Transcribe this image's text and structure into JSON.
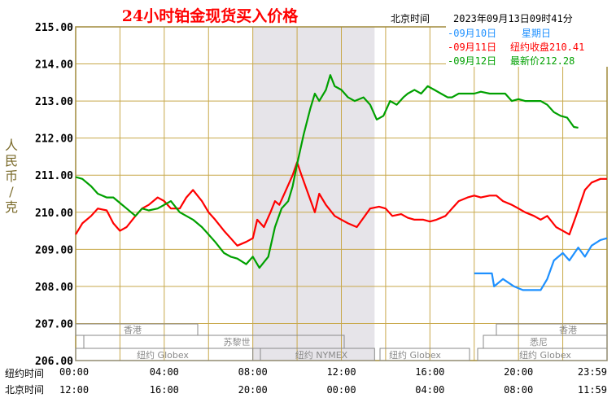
{
  "header": {
    "title": "24小时铂金现货买入价格",
    "location": "北京时间",
    "timestamp": "2023年09月13日09时41分"
  },
  "legend": [
    {
      "date": "-09月10日",
      "info": "星期日",
      "color": "#1e90ff"
    },
    {
      "date": "-09月11日",
      "info": "纽约收盘210.41",
      "color": "#ff0000"
    },
    {
      "date": "-09月12日",
      "info": "最新价212.28",
      "color": "#00a000"
    }
  ],
  "axis": {
    "ylabel": "人民币/克",
    "row1_label": "纽约时间",
    "row2_label": "北京时间",
    "ny_ticks": [
      "00:00",
      "04:00",
      "08:00",
      "12:00",
      "16:00",
      "20:00",
      "23:59"
    ],
    "bj_ticks": [
      "12:00",
      "16:00",
      "20:00",
      "00:00",
      "04:00",
      "08:00",
      "11:59"
    ]
  },
  "sessions": {
    "hongkong": "香港",
    "paris": "苏黎世",
    "sydney": "悉尼",
    "ny_globex": "纽约 Globex",
    "ny_nymex": "纽约 NYMEX"
  },
  "chart_data": {
    "type": "line",
    "title": "24小时铂金现货买入价格",
    "ylabel": "人民币/克",
    "xlabel": "纽约时间 / 北京时间",
    "x_unit": "hours since 00:00 New York time",
    "ylim": [
      206.0,
      215.0
    ],
    "yticks": [
      "206.00",
      "207.00",
      "208.00",
      "209.00",
      "210.00",
      "211.00",
      "212.00",
      "213.00",
      "214.00",
      "215.00"
    ],
    "grid": true,
    "legend_position": "top-right",
    "shaded_hours": [
      8.0,
      13.5
    ],
    "series": [
      {
        "name": "09月10日",
        "color": "#1e90ff",
        "points": [
          [
            18.0,
            208.35
          ],
          [
            18.8,
            208.35
          ],
          [
            18.9,
            208.0
          ],
          [
            19.3,
            208.2
          ],
          [
            19.8,
            208.0
          ],
          [
            20.2,
            207.9
          ],
          [
            21.0,
            207.9
          ],
          [
            21.3,
            208.2
          ],
          [
            21.6,
            208.7
          ],
          [
            22.0,
            208.9
          ],
          [
            22.3,
            208.7
          ],
          [
            22.7,
            209.05
          ],
          [
            23.0,
            208.8
          ],
          [
            23.3,
            209.1
          ],
          [
            23.7,
            209.25
          ],
          [
            24.0,
            209.3
          ]
        ]
      },
      {
        "name": "09月11日",
        "color": "#ff0000",
        "points": [
          [
            0.0,
            209.4
          ],
          [
            0.3,
            209.7
          ],
          [
            0.7,
            209.9
          ],
          [
            1.0,
            210.1
          ],
          [
            1.4,
            210.05
          ],
          [
            1.7,
            209.7
          ],
          [
            2.0,
            209.5
          ],
          [
            2.3,
            209.6
          ],
          [
            2.7,
            209.9
          ],
          [
            3.0,
            210.1
          ],
          [
            3.3,
            210.2
          ],
          [
            3.7,
            210.4
          ],
          [
            4.0,
            210.3
          ],
          [
            4.3,
            210.1
          ],
          [
            4.7,
            210.1
          ],
          [
            5.0,
            210.4
          ],
          [
            5.3,
            210.6
          ],
          [
            5.7,
            210.3
          ],
          [
            6.0,
            210.0
          ],
          [
            6.3,
            209.8
          ],
          [
            6.7,
            209.5
          ],
          [
            7.0,
            209.3
          ],
          [
            7.3,
            209.1
          ],
          [
            7.7,
            209.2
          ],
          [
            8.0,
            209.3
          ],
          [
            8.2,
            209.8
          ],
          [
            8.5,
            209.6
          ],
          [
            8.8,
            210.0
          ],
          [
            9.0,
            210.3
          ],
          [
            9.2,
            210.2
          ],
          [
            9.5,
            210.6
          ],
          [
            9.8,
            211.0
          ],
          [
            10.0,
            211.35
          ],
          [
            10.2,
            211.0
          ],
          [
            10.5,
            210.5
          ],
          [
            10.8,
            210.0
          ],
          [
            11.0,
            210.5
          ],
          [
            11.3,
            210.2
          ],
          [
            11.7,
            209.9
          ],
          [
            12.0,
            209.8
          ],
          [
            12.3,
            209.7
          ],
          [
            12.7,
            209.6
          ],
          [
            13.0,
            209.85
          ],
          [
            13.3,
            210.1
          ],
          [
            13.7,
            210.15
          ],
          [
            14.0,
            210.1
          ],
          [
            14.3,
            209.9
          ],
          [
            14.7,
            209.95
          ],
          [
            15.0,
            209.85
          ],
          [
            15.3,
            209.8
          ],
          [
            15.7,
            209.8
          ],
          [
            16.0,
            209.75
          ],
          [
            16.3,
            209.8
          ],
          [
            16.7,
            209.9
          ],
          [
            17.0,
            210.1
          ],
          [
            17.3,
            210.3
          ],
          [
            17.7,
            210.4
          ],
          [
            18.0,
            210.45
          ],
          [
            18.3,
            210.4
          ],
          [
            18.7,
            210.45
          ],
          [
            19.0,
            210.45
          ],
          [
            19.3,
            210.3
          ],
          [
            19.7,
            210.2
          ],
          [
            20.0,
            210.1
          ],
          [
            20.3,
            210.0
          ],
          [
            20.7,
            209.9
          ],
          [
            21.0,
            209.8
          ],
          [
            21.3,
            209.9
          ],
          [
            21.7,
            209.6
          ],
          [
            22.0,
            209.5
          ],
          [
            22.3,
            209.4
          ],
          [
            22.6,
            209.9
          ],
          [
            23.0,
            210.6
          ],
          [
            23.3,
            210.8
          ],
          [
            23.7,
            210.9
          ],
          [
            24.0,
            210.9
          ]
        ]
      },
      {
        "name": "09月12日",
        "color": "#00a000",
        "points": [
          [
            0.0,
            210.95
          ],
          [
            0.3,
            210.9
          ],
          [
            0.7,
            210.7
          ],
          [
            1.0,
            210.5
          ],
          [
            1.4,
            210.4
          ],
          [
            1.7,
            210.4
          ],
          [
            2.0,
            210.25
          ],
          [
            2.3,
            210.1
          ],
          [
            2.7,
            209.9
          ],
          [
            3.0,
            210.1
          ],
          [
            3.3,
            210.05
          ],
          [
            3.7,
            210.1
          ],
          [
            4.0,
            210.2
          ],
          [
            4.3,
            210.3
          ],
          [
            4.7,
            210.0
          ],
          [
            5.0,
            209.9
          ],
          [
            5.3,
            209.8
          ],
          [
            5.7,
            209.6
          ],
          [
            6.0,
            209.4
          ],
          [
            6.3,
            209.2
          ],
          [
            6.7,
            208.9
          ],
          [
            7.0,
            208.8
          ],
          [
            7.3,
            208.75
          ],
          [
            7.7,
            208.6
          ],
          [
            8.0,
            208.8
          ],
          [
            8.3,
            208.5
          ],
          [
            8.7,
            208.8
          ],
          [
            9.0,
            209.6
          ],
          [
            9.3,
            210.1
          ],
          [
            9.6,
            210.3
          ],
          [
            9.8,
            210.7
          ],
          [
            10.0,
            211.3
          ],
          [
            10.3,
            212.1
          ],
          [
            10.6,
            212.8
          ],
          [
            10.8,
            213.2
          ],
          [
            11.0,
            213.0
          ],
          [
            11.3,
            213.3
          ],
          [
            11.5,
            213.7
          ],
          [
            11.7,
            213.4
          ],
          [
            12.0,
            213.3
          ],
          [
            12.3,
            213.1
          ],
          [
            12.6,
            213.0
          ],
          [
            13.0,
            213.1
          ],
          [
            13.3,
            212.9
          ],
          [
            13.6,
            212.5
          ],
          [
            13.9,
            212.6
          ],
          [
            14.2,
            213.0
          ],
          [
            14.5,
            212.9
          ],
          [
            14.8,
            213.1
          ],
          [
            15.0,
            213.2
          ],
          [
            15.3,
            213.3
          ],
          [
            15.6,
            213.2
          ],
          [
            15.9,
            213.4
          ],
          [
            16.2,
            213.3
          ],
          [
            16.5,
            213.2
          ],
          [
            16.8,
            213.1
          ],
          [
            17.0,
            213.1
          ],
          [
            17.3,
            213.2
          ],
          [
            17.7,
            213.2
          ],
          [
            18.0,
            213.2
          ],
          [
            18.3,
            213.25
          ],
          [
            18.7,
            213.2
          ],
          [
            19.0,
            213.2
          ],
          [
            19.4,
            213.2
          ],
          [
            19.7,
            213.0
          ],
          [
            20.0,
            213.05
          ],
          [
            20.3,
            213.0
          ],
          [
            20.7,
            213.0
          ],
          [
            21.0,
            213.0
          ],
          [
            21.3,
            212.9
          ],
          [
            21.6,
            212.7
          ],
          [
            21.9,
            212.6
          ],
          [
            22.2,
            212.55
          ],
          [
            22.5,
            212.3
          ],
          [
            22.7,
            212.28
          ]
        ]
      }
    ]
  }
}
